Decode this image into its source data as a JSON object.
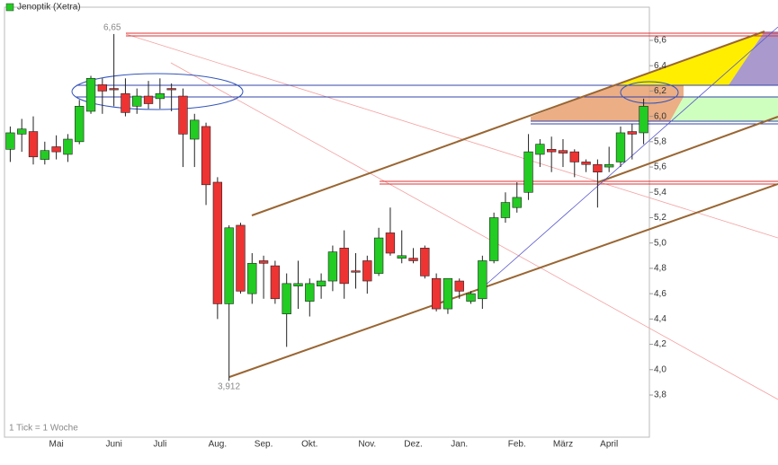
{
  "chart_data": {
    "type": "candlestick",
    "title": "Jenoptik (Xetra)",
    "footnote": "1 Tick = 1 Woche",
    "annotations": [
      "6,65",
      "3,912"
    ],
    "categories": [
      null,
      null,
      null,
      null,
      "Mai",
      null,
      null,
      null,
      null,
      "Juni",
      null,
      null,
      null,
      "Juli",
      null,
      null,
      null,
      null,
      "Aug.",
      null,
      null,
      null,
      "Sep.",
      null,
      null,
      null,
      "Okt.",
      null,
      null,
      null,
      null,
      "Nov.",
      null,
      null,
      null,
      "Dez.",
      null,
      null,
      null,
      "Jan.",
      null,
      null,
      null,
      null,
      "Feb.",
      null,
      null,
      null,
      "März",
      null,
      null,
      null,
      "April",
      null,
      null,
      null
    ],
    "series": [
      {
        "name": "Jenoptik (Xetra)",
        "up_color": "#22cc22",
        "down_color": "#ee3333",
        "open": [
          5.74,
          5.86,
          5.88,
          5.66,
          5.76,
          5.7,
          5.8,
          6.04,
          6.25,
          6.22,
          6.18,
          6.08,
          6.16,
          6.14,
          6.22,
          6.16,
          5.82,
          5.92,
          5.48,
          4.52,
          5.14,
          4.6,
          4.86,
          4.82,
          4.44,
          4.66,
          4.54,
          4.66,
          4.7,
          4.96,
          4.78,
          4.86,
          4.76,
          5.08,
          4.88,
          4.88,
          4.96,
          4.72,
          4.48,
          4.7,
          4.54,
          4.56,
          4.86,
          5.2,
          5.28,
          5.4,
          5.7,
          5.74,
          5.73,
          5.72,
          5.64,
          5.62,
          5.6,
          5.64,
          5.88,
          5.87
        ],
        "high": [
          5.92,
          5.98,
          6.0,
          5.8,
          5.85,
          5.86,
          6.13,
          6.32,
          6.3,
          6.65,
          6.3,
          6.22,
          6.28,
          6.3,
          6.26,
          6.22,
          6.02,
          5.95,
          5.52,
          5.14,
          5.16,
          4.92,
          4.9,
          4.86,
          4.76,
          4.86,
          4.72,
          4.76,
          4.98,
          5.1,
          4.92,
          4.9,
          5.12,
          5.28,
          5.1,
          4.96,
          4.98,
          4.76,
          4.72,
          4.72,
          4.62,
          4.9,
          5.24,
          5.4,
          5.48,
          5.86,
          5.82,
          5.84,
          5.82,
          5.74,
          5.66,
          5.66,
          5.76,
          5.92,
          5.94,
          6.14
        ],
        "low": [
          5.64,
          5.72,
          5.62,
          5.62,
          5.66,
          5.64,
          5.78,
          6.02,
          6.02,
          6.08,
          6.0,
          6.02,
          6.06,
          6.06,
          6.04,
          5.6,
          5.6,
          5.3,
          4.4,
          3.912,
          4.6,
          4.52,
          4.56,
          4.52,
          4.18,
          4.48,
          4.42,
          4.56,
          4.62,
          4.56,
          4.64,
          4.6,
          4.74,
          4.9,
          4.84,
          4.84,
          4.72,
          4.46,
          4.44,
          4.56,
          4.52,
          4.48,
          4.84,
          5.16,
          5.24,
          5.34,
          5.6,
          5.56,
          5.6,
          5.52,
          5.56,
          5.28,
          5.56,
          5.6,
          5.66,
          5.78
        ],
        "close": [
          5.87,
          5.9,
          5.68,
          5.73,
          5.72,
          5.82,
          6.08,
          6.3,
          6.2,
          6.21,
          6.03,
          6.16,
          6.1,
          6.18,
          6.21,
          5.86,
          5.97,
          5.46,
          4.52,
          5.12,
          4.62,
          4.84,
          4.84,
          4.56,
          4.68,
          4.68,
          4.68,
          4.7,
          4.93,
          4.68,
          4.77,
          4.7,
          5.04,
          4.92,
          4.9,
          4.86,
          4.74,
          4.48,
          4.72,
          4.62,
          4.6,
          4.86,
          5.2,
          5.32,
          5.36,
          5.72,
          5.78,
          5.72,
          5.71,
          5.64,
          5.62,
          5.56,
          5.62,
          5.87,
          5.86,
          6.08
        ]
      }
    ],
    "ylim": [
      3.467,
      6.862
    ],
    "yticks": [
      {
        "value": 3.8,
        "label": "3,8"
      },
      {
        "value": 4.0,
        "label": "4,0"
      },
      {
        "value": 4.2,
        "label": "4,2"
      },
      {
        "value": 4.4,
        "label": "4,4"
      },
      {
        "value": 4.6,
        "label": "4,6"
      },
      {
        "value": 4.8,
        "label": "4,8"
      },
      {
        "value": 5.0,
        "label": "5,0"
      },
      {
        "value": 5.2,
        "label": "5,2"
      },
      {
        "value": 5.4,
        "label": "5,4"
      },
      {
        "value": 5.6,
        "label": "5,6"
      },
      {
        "value": 5.8,
        "label": "5,8"
      },
      {
        "value": 6.0,
        "label": "6,0"
      },
      {
        "value": 6.2,
        "label": "6,2"
      },
      {
        "value": 6.4,
        "label": "6,4"
      },
      {
        "value": 6.6,
        "label": "6,6"
      }
    ],
    "grid": false
  }
}
